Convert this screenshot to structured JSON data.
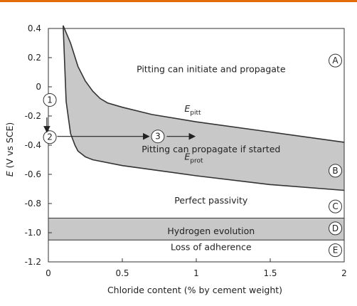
{
  "chart_data": {
    "type": "area",
    "title": "",
    "xlabel": "Chloride content (% by cement weight)",
    "ylabel": "E (V vs SCE)",
    "xlim": [
      0,
      2
    ],
    "ylim": [
      -1.2,
      0.45
    ],
    "x_ticks": [
      0,
      0.5,
      1,
      1.5,
      2
    ],
    "x_tick_labels": [
      "0",
      "0.5",
      "1",
      "1.5",
      "2"
    ],
    "y_ticks": [
      0.4,
      0.2,
      0,
      -0.2,
      -0.4,
      -0.6,
      -0.8,
      -1.0,
      -1.2
    ],
    "y_tick_labels": [
      "0.4",
      "0.2",
      "0",
      "-0.2",
      "-0.4",
      "-0.6",
      "-0.8",
      "-1.0",
      "-1.2"
    ],
    "grid": false,
    "series": [
      {
        "name": "E_pitt",
        "x": [
          0.1,
          0.15,
          0.2,
          0.25,
          0.3,
          0.35,
          0.4,
          0.5,
          0.7,
          1.0,
          1.5,
          2.0
        ],
        "y": [
          0.42,
          0.3,
          0.14,
          0.04,
          -0.03,
          -0.08,
          -0.11,
          -0.14,
          -0.19,
          -0.24,
          -0.31,
          -0.38
        ]
      },
      {
        "name": "E_prot",
        "x": [
          0.1,
          0.12,
          0.15,
          0.18,
          0.2,
          0.25,
          0.3,
          0.5,
          1.0,
          1.5,
          2.0
        ],
        "y": [
          0.42,
          -0.1,
          -0.32,
          -0.4,
          -0.44,
          -0.48,
          -0.5,
          -0.54,
          -0.61,
          -0.67,
          -0.71
        ]
      }
    ],
    "bands": [
      {
        "name": "hydrogen-evolution",
        "y_range": [
          -1.05,
          -0.9
        ],
        "color": "#c8c8c8"
      }
    ],
    "region_labels": [
      {
        "text": "Pitting can initiate and propagate",
        "x": 1.1,
        "y": 0.12
      },
      {
        "text": "Pitting can propagate if started",
        "x": 1.1,
        "y": -0.43
      },
      {
        "text": "Perfect passivity",
        "x": 1.1,
        "y": -0.78
      },
      {
        "text": "Hydrogen evolution",
        "x": 1.1,
        "y": -0.99
      },
      {
        "text": "Loss of adherence",
        "x": 1.1,
        "y": -1.1
      }
    ],
    "curve_labels": [
      {
        "text": "E",
        "sub": "pitt",
        "x": 0.92,
        "y": -0.17
      },
      {
        "text": "E",
        "sub": "prot",
        "x": 0.92,
        "y": -0.5
      }
    ],
    "circle_labels_letters": [
      {
        "text": "A",
        "x": 1.94,
        "y": 0.18
      },
      {
        "text": "B",
        "x": 1.94,
        "y": -0.575
      },
      {
        "text": "C",
        "x": 1.94,
        "y": -0.82
      },
      {
        "text": "D",
        "x": 1.94,
        "y": -0.97
      },
      {
        "text": "E",
        "x": 1.94,
        "y": -1.12
      }
    ],
    "circle_labels_numbers": [
      {
        "text": "1",
        "x": 0.01,
        "y": -0.09
      },
      {
        "text": "2",
        "x": 0.01,
        "y": -0.345
      },
      {
        "text": "3",
        "x": 0.74,
        "y": -0.34
      }
    ],
    "arrows": [
      {
        "from": [
          -0.01,
          -0.21
        ],
        "to": [
          -0.01,
          -0.31
        ]
      },
      {
        "from": [
          0.06,
          -0.34
        ],
        "to": [
          0.68,
          -0.34
        ]
      },
      {
        "from": [
          0.8,
          -0.34
        ],
        "to": [
          0.99,
          -0.34
        ]
      }
    ],
    "colors": {
      "fill": "#c8c8c8",
      "line": "#333333",
      "accent": "#e36c0a"
    }
  }
}
